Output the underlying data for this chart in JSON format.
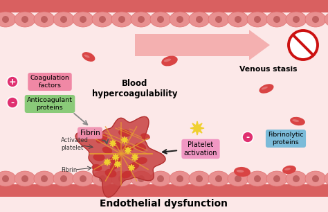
{
  "bg_color": "#fce8e8",
  "vessel_wall_color": "#e07070",
  "top_bar_color": "#d96060",
  "cell_body_color": "#e89090",
  "cell_nucleus_color": "#c06060",
  "rbc_color": "#d94444",
  "rbc_dark": "#c03030",
  "title": "Endothelial dysfunction",
  "title_fontsize": 10,
  "no_sign_color": "#cc1111",
  "venous_arrow_color": "#f4b0b0",
  "labels": {
    "blood_hypercoagulability": "Blood\nhypercoagulability",
    "venous_stasis": "Venous stasis",
    "coagulation_factors": "Coagulation\nfactors",
    "anticoagulant_proteins": "Anticoagulant\nproteins",
    "fibrin_label": "Fibrin",
    "activated_platelet": "Activated\nplatelet",
    "fibrin_bottom": "Fibrin",
    "platelet_activation": "Platelet\nactivation",
    "fibrinolytic_proteins": "Fibrinolytic\nproteins"
  },
  "plus_color": "#e03070",
  "minus_color": "#e03070",
  "pink_box_color": "#f080a0",
  "green_box_color": "#80c870",
  "blue_box_color": "#70b8d8",
  "fibrin_box_color": "#f090b0",
  "platelet_box_color": "#f090c0",
  "clot_base_color": "#d05040",
  "clot_rbc_color": "#c83030",
  "fibrin_net_color": "#e8a030",
  "star_color": "#f0d030",
  "rbc_positions": [
    [
      245,
      88,
      12,
      7,
      -15
    ],
    [
      385,
      128,
      11,
      6,
      -20
    ],
    [
      430,
      175,
      11,
      6,
      10
    ],
    [
      350,
      248,
      12,
      7,
      5
    ],
    [
      418,
      245,
      10,
      6,
      -10
    ],
    [
      128,
      82,
      10,
      6,
      25
    ]
  ]
}
